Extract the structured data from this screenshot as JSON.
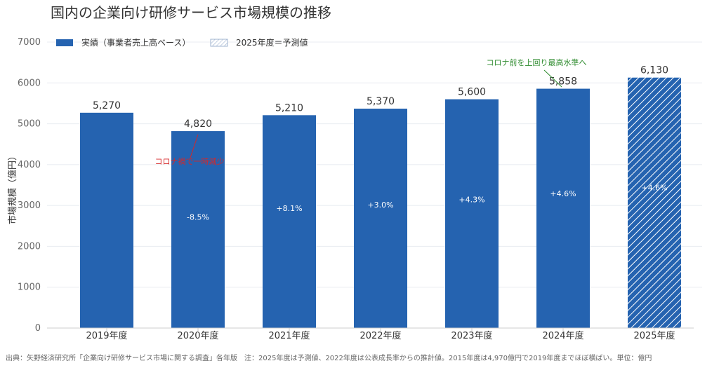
{
  "title": "国内の企業向け研修サービス市場規模の推移",
  "footnote": "出典：矢野経済研究所「企業向け研修サービス市場に関する調査」各年版　注：2025年度は予測値、2022年度は公表成長率からの推計値。2015年度は4,970億円で2019年度までほぼ横ばい。単位：億円",
  "colors": {
    "bar": "#2563b0",
    "grid": "#e8ebf0",
    "annot_red": "#d62728",
    "annot_green": "#2e8b2e"
  },
  "chart_data": {
    "type": "bar",
    "title": "国内の企業向け研修サービス市場規模の推移",
    "xlabel": "",
    "ylabel": "市場規模（億円）",
    "ylim": [
      0,
      7000
    ],
    "yticks": [
      "0",
      "1000",
      "2000",
      "3000",
      "4000",
      "5000",
      "6000",
      "7000"
    ],
    "grid": true,
    "legend_position": "top-left",
    "categories": [
      "2019年度",
      "2020年度",
      "2021年度",
      "2022年度",
      "2023年度",
      "2024年度",
      "2025年度"
    ],
    "values": [
      5270,
      4820,
      5210,
      5370,
      5600,
      5858,
      6130
    ],
    "value_labels": [
      "5,270",
      "4,820",
      "5,210",
      "5,370",
      "5,600",
      "5,858",
      "6,130"
    ],
    "growth_labels": [
      "",
      "-8.5%",
      "+8.1%",
      "+3.0%",
      "+4.3%",
      "+4.6%",
      "+4.6%"
    ],
    "forecast": [
      false,
      false,
      false,
      false,
      false,
      false,
      true
    ],
    "legend": [
      {
        "label": "実績（事業者売上高ベース）",
        "style": "solid"
      },
      {
        "label": "2025年度＝予測値",
        "style": "hatched"
      }
    ],
    "annotations": [
      {
        "text": "コロナ禍で一時減少",
        "category": "2020年度",
        "color": "red"
      },
      {
        "text": "コロナ前を上回り最高水準へ",
        "category": "2024年度",
        "color": "green"
      }
    ]
  }
}
